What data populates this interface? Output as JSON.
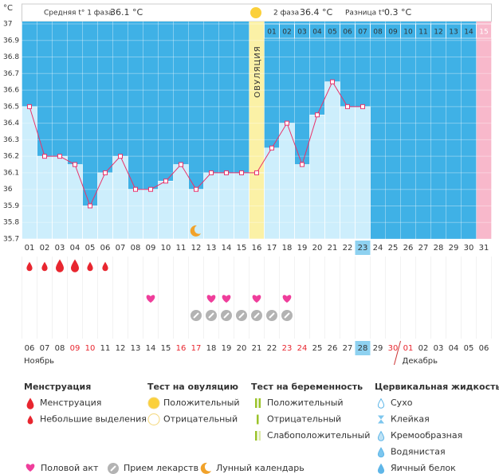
{
  "unit_label": "°C",
  "header": {
    "phase1_label": "Средняя t° 1 фаза",
    "phase1_value": "36.1 °C",
    "phase2_label": "2 фаза",
    "phase2_value": "36.4 °C",
    "diff_label": "Разница t°",
    "diff_value": "0.3 °C"
  },
  "chart_data": {
    "type": "line",
    "color": "#e8336b",
    "categories": [
      "01",
      "02",
      "03",
      "04",
      "05",
      "06",
      "07",
      "08",
      "09",
      "10",
      "11",
      "12",
      "13",
      "14",
      "15",
      "16",
      "17",
      "18",
      "19",
      "20",
      "21",
      "22",
      "23",
      "24",
      "25",
      "26",
      "27",
      "28",
      "29",
      "30",
      "31"
    ],
    "values": [
      36.5,
      36.2,
      36.2,
      36.15,
      35.9,
      36.1,
      36.2,
      36.0,
      36.0,
      36.05,
      36.15,
      36.0,
      36.1,
      36.1,
      36.1,
      36.1,
      36.25,
      36.4,
      36.15,
      36.45,
      36.65,
      36.5,
      36.5,
      null,
      null,
      null,
      null,
      null,
      null,
      null,
      null
    ],
    "ylim": [
      35.7,
      37
    ],
    "yticks": [
      37,
      36.9,
      36.8,
      36.7,
      36.6,
      36.5,
      36.4,
      36.3,
      36.2,
      36.1,
      36,
      35.9,
      35.8,
      35.7
    ],
    "ovulation_label": "ОВУЛЯЦИЯ",
    "ovulation_day": 16,
    "highlight_day": 23,
    "phase2_day_labels": [
      "01",
      "02",
      "03",
      "04",
      "05",
      "06",
      "07",
      "08",
      "09",
      "10",
      "11",
      "12",
      "13",
      "14",
      "15"
    ]
  },
  "events": {
    "menstruation_heavy": [
      3,
      4
    ],
    "menstruation_light": [
      1,
      2,
      5,
      6
    ],
    "intercourse": [
      9,
      13,
      14,
      16,
      18
    ],
    "medication": [
      12,
      13,
      14,
      15,
      16,
      17,
      18
    ],
    "moon": [
      12
    ]
  },
  "dates": [
    {
      "label": "06"
    },
    {
      "label": "07"
    },
    {
      "label": "08"
    },
    {
      "label": "09",
      "weekend": true
    },
    {
      "label": "10",
      "weekend": true
    },
    {
      "label": "11"
    },
    {
      "label": "12"
    },
    {
      "label": "13"
    },
    {
      "label": "14"
    },
    {
      "label": "15"
    },
    {
      "label": "16",
      "weekend": true
    },
    {
      "label": "17",
      "weekend": true
    },
    {
      "label": "18"
    },
    {
      "label": "19"
    },
    {
      "label": "20"
    },
    {
      "label": "21"
    },
    {
      "label": "22"
    },
    {
      "label": "23",
      "weekend": true
    },
    {
      "label": "24",
      "weekend": true
    },
    {
      "label": "25"
    },
    {
      "label": "26"
    },
    {
      "label": "27"
    },
    {
      "label": "28"
    },
    {
      "label": "29"
    },
    {
      "label": "30",
      "weekend": true
    },
    {
      "label": "01",
      "weekend": true
    },
    {
      "label": "02"
    },
    {
      "label": "03"
    },
    {
      "label": "04"
    },
    {
      "label": "05"
    },
    {
      "label": "06"
    }
  ],
  "months": [
    "Ноябрь",
    "Декабрь"
  ],
  "legend": {
    "sections": [
      {
        "title": "Менструация",
        "items": [
          "Менструация",
          "Небольшие выделения"
        ]
      },
      {
        "title": "Тест на овуляцию",
        "items": [
          "Положительный",
          "Отрицательный"
        ]
      },
      {
        "title": "Тест на беременность",
        "items": [
          "Положительный",
          "Отрицательный",
          "Слабоположительный"
        ]
      },
      {
        "title": "Цервикальная жидкость",
        "items": [
          "Сухо",
          "Клейкая",
          "Кремообразная",
          "Водянистая",
          "Яичный белок"
        ]
      }
    ],
    "bottom": [
      "Половой акт",
      "Прием лекарств",
      "Лунный календарь"
    ]
  }
}
